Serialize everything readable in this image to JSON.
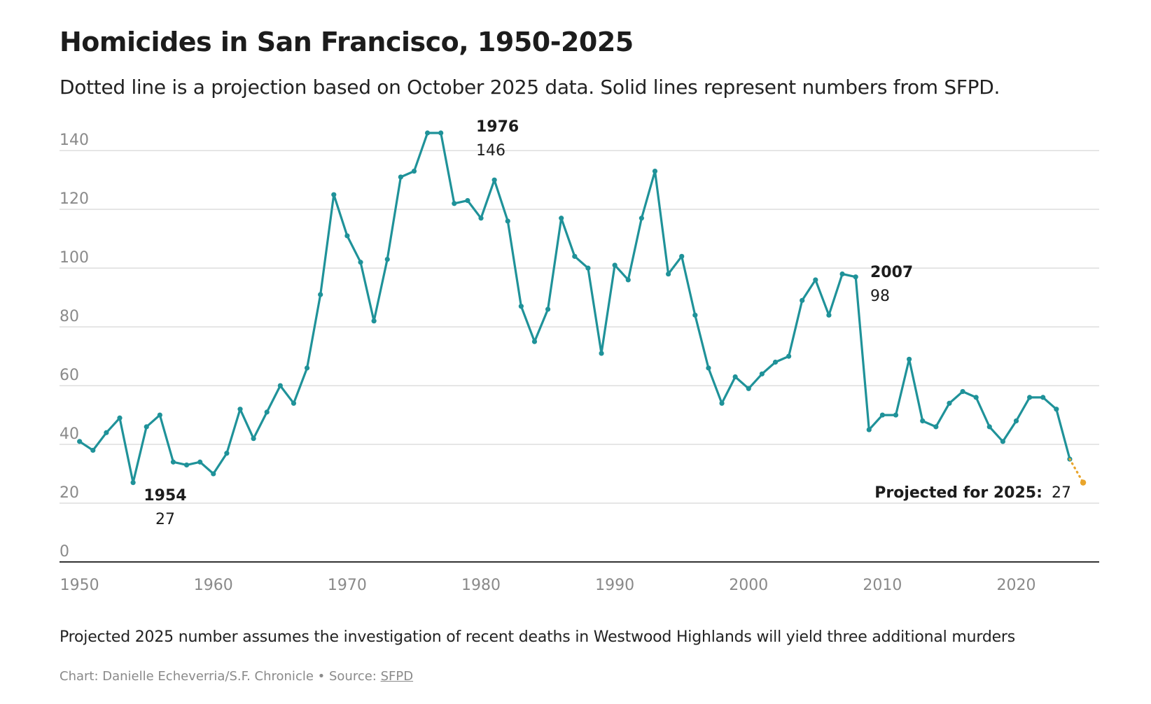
{
  "title": "Homicides in San Francisco, 1950-2025",
  "subtitle": "Dotted line is a projection based on October 2025 data. Solid lines represent numbers from SFPD.",
  "note": "Projected 2025 number assumes the investigation of recent deaths in Westwood Highlands will yield three additional murders",
  "credit": {
    "prefix": "Chart: Danielle Echeverria/S.F. Chronicle • Source: ",
    "source_link": "SFPD"
  },
  "colors": {
    "line": "#1f9299",
    "projection": "#e9a52c",
    "grid": "#dedede",
    "axis": "#333333"
  },
  "chart_data": {
    "type": "line",
    "x_ticks": [
      1950,
      1960,
      1970,
      1980,
      1990,
      2000,
      2010,
      2020
    ],
    "y_ticks": [
      0,
      20,
      40,
      60,
      80,
      100,
      120,
      140
    ],
    "xlim": [
      1948.5,
      2026.2
    ],
    "ylim": [
      0,
      146
    ],
    "grid": "horizontal",
    "series": [
      {
        "x": [
          1950,
          1951,
          1952,
          1953,
          1954,
          1955,
          1956,
          1957,
          1958,
          1959,
          1960,
          1961,
          1962,
          1963,
          1964,
          1965,
          1966,
          1967,
          1968,
          1969,
          1970,
          1971,
          1972,
          1973,
          1974,
          1975,
          1976,
          1977,
          1978,
          1979,
          1980,
          1981,
          1982,
          1983,
          1984,
          1985,
          1986,
          1987,
          1988,
          1989,
          1990,
          1991,
          1992,
          1993,
          1994,
          1995,
          1996,
          1997,
          1998,
          1999,
          2000,
          2001,
          2002,
          2003,
          2004,
          2005,
          2006,
          2007,
          2008,
          2009,
          2010,
          2011,
          2012,
          2013,
          2014,
          2015,
          2016,
          2017,
          2018,
          2019,
          2020,
          2021,
          2022,
          2023,
          2024
        ],
        "values": [
          41,
          38,
          44,
          49,
          27,
          46,
          50,
          34,
          33,
          34,
          30,
          37,
          52,
          42,
          51,
          60,
          54,
          66,
          91,
          125,
          111,
          102,
          82,
          103,
          131,
          133,
          146,
          146,
          122,
          123,
          117,
          130,
          116,
          87,
          75,
          86,
          117,
          104,
          100,
          71,
          101,
          96,
          117,
          133,
          98,
          104,
          84,
          66,
          54,
          63,
          59,
          64,
          68,
          70,
          89,
          96,
          84,
          98,
          97,
          45,
          50,
          50,
          69,
          48,
          46,
          54,
          58,
          56,
          46,
          41,
          48,
          56,
          56,
          52,
          35
        ]
      },
      {
        "x": [
          2024,
          2025
        ],
        "values": [
          35,
          27
        ]
      }
    ],
    "annotations": [
      {
        "year_label": "1976",
        "value_label": "146"
      },
      {
        "year_label": "2007",
        "value_label": "98"
      },
      {
        "year_label": "1954",
        "value_label": "27"
      },
      {
        "prefix": "Projected for 2025:",
        "value_label": "27"
      }
    ]
  }
}
